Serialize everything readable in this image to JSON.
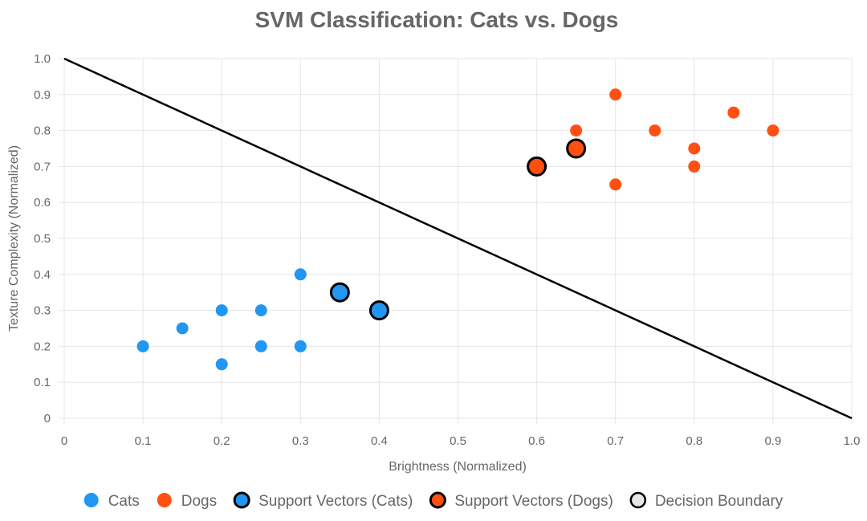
{
  "colors": {
    "cats": "#2196f3",
    "dogs": "#ff5011",
    "sv_stroke": "#000000",
    "boundary": "#000000",
    "boundary_legend_fill": "#e6e6e6",
    "grid": "#e5e5e5",
    "text": "#666666"
  },
  "chart_data": {
    "type": "scatter",
    "title": "SVM Classification: Cats vs. Dogs",
    "xlabel": "Brightness (Normalized)",
    "ylabel": "Texture Complexity (Normalized)",
    "xlim": [
      0,
      1.0
    ],
    "ylim": [
      0,
      1.0
    ],
    "x_ticks": [
      "0",
      "0.1",
      "0.2",
      "0.3",
      "0.4",
      "0.5",
      "0.6",
      "0.7",
      "0.8",
      "0.9",
      "1.0"
    ],
    "y_ticks": [
      "0",
      "0.1",
      "0.2",
      "0.3",
      "0.4",
      "0.5",
      "0.6",
      "0.7",
      "0.8",
      "0.9",
      "1.0"
    ],
    "grid": true,
    "legend_position": "bottom",
    "series": [
      {
        "name": "Cats",
        "kind": "points",
        "color": "#2196f3",
        "points": [
          [
            0.1,
            0.2
          ],
          [
            0.15,
            0.25
          ],
          [
            0.2,
            0.3
          ],
          [
            0.2,
            0.15
          ],
          [
            0.25,
            0.3
          ],
          [
            0.25,
            0.2
          ],
          [
            0.3,
            0.4
          ],
          [
            0.3,
            0.2
          ]
        ]
      },
      {
        "name": "Dogs",
        "kind": "points",
        "color": "#ff5011",
        "points": [
          [
            0.65,
            0.8
          ],
          [
            0.7,
            0.9
          ],
          [
            0.7,
            0.65
          ],
          [
            0.75,
            0.8
          ],
          [
            0.8,
            0.75
          ],
          [
            0.8,
            0.7
          ],
          [
            0.85,
            0.85
          ],
          [
            0.9,
            0.8
          ]
        ]
      },
      {
        "name": "Support Vectors (Cats)",
        "kind": "support",
        "color": "#2196f3",
        "points": [
          [
            0.35,
            0.35
          ],
          [
            0.4,
            0.3
          ]
        ]
      },
      {
        "name": "Support Vectors (Dogs)",
        "kind": "support",
        "color": "#ff5011",
        "points": [
          [
            0.6,
            0.7
          ],
          [
            0.65,
            0.75
          ]
        ]
      },
      {
        "name": "Decision Boundary",
        "kind": "line",
        "color": "#000000",
        "points": [
          [
            0,
            1.0
          ],
          [
            1.0,
            0
          ]
        ]
      }
    ]
  }
}
